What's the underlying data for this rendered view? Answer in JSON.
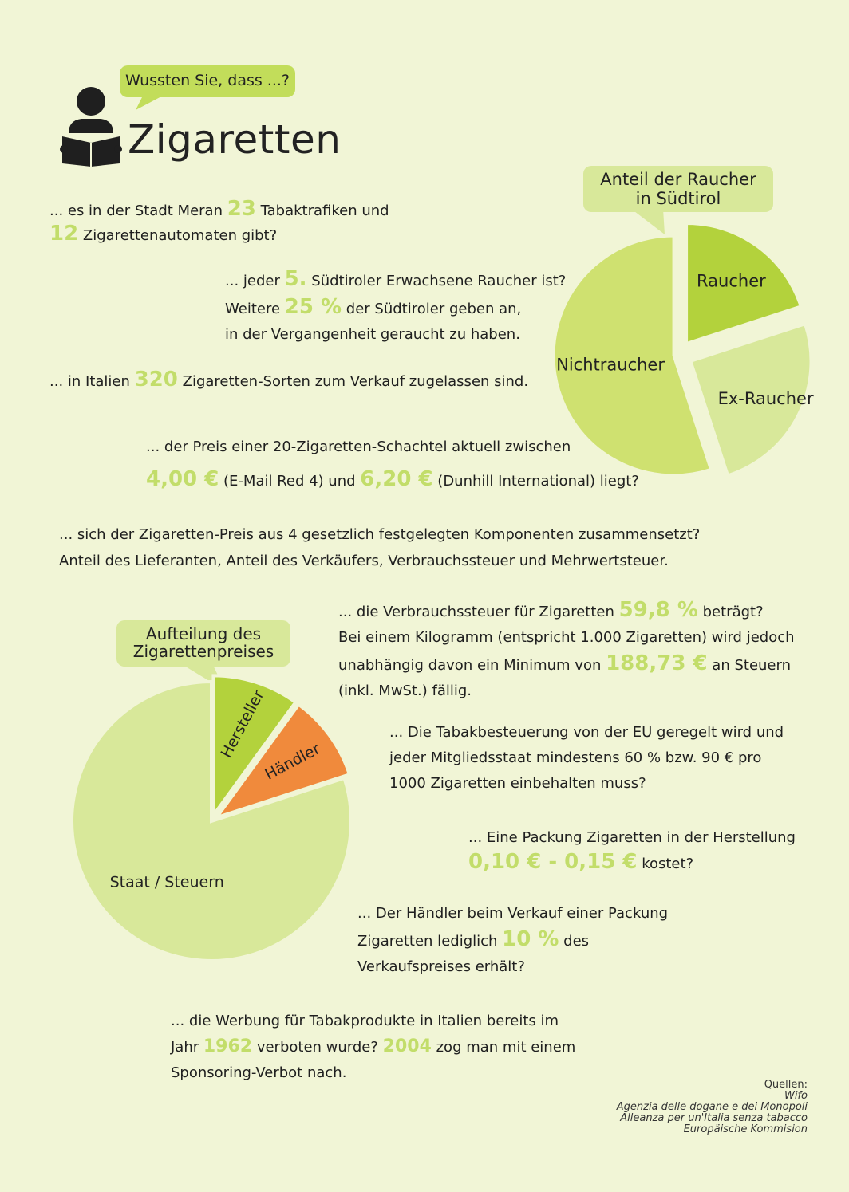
{
  "header": {
    "bubble": "Wussten Sie, dass ...?",
    "title": "Zigaretten",
    "icon": "person-reading-icon"
  },
  "facts": {
    "f1": {
      "a": "... es in der Stadt Meran ",
      "n1": "23",
      "b": " Tabaktrafiken und",
      "n2": "12",
      "c": " Zigarettenautomaten gibt?"
    },
    "f2": {
      "a": "... jeder ",
      "n1": "5.",
      "b": " Südtiroler Erwachsene Raucher ist?",
      "c": "Weitere ",
      "n2": "25 %",
      "d": " der Südtiroler geben an,",
      "e": "in der Vergangenheit geraucht zu haben."
    },
    "f3": {
      "a": "... in Italien ",
      "n1": "320",
      "b": " Zigaretten-Sorten zum Verkauf zugelassen sind."
    },
    "f4": {
      "a": "... der Preis einer 20-Zigaretten-Schachtel aktuell zwischen",
      "n1": "4,00 €",
      "b": " (E-Mail Red 4) und ",
      "n2": "6,20 €",
      "c": " (Dunhill International) liegt?"
    },
    "f5": {
      "a": "... sich der Zigaretten-Preis aus 4 gesetzlich festgelegten Komponenten zusammensetzt?",
      "b": "Anteil des Lieferanten, Anteil des Verkäufers, Verbrauchssteuer und Mehrwertsteuer."
    },
    "f6": {
      "a": "... die Verbrauchssteuer für Zigaretten ",
      "n1": "59,8 %",
      "b": " beträgt?",
      "c": "Bei einem Kilogramm (entspricht 1.000 Zigaretten) wird jedoch",
      "d": "unabhängig davon ein Minimum von ",
      "n2": "188,73 €",
      "e": " an Steuern",
      "f": "(inkl. MwSt.) fällig."
    },
    "f7": {
      "a": "... Die Tabakbesteuerung von der EU geregelt wird und",
      "b": "jeder Mitgliedsstaat mindestens 60 % bzw. 90 € pro",
      "c": "1000 Zigaretten einbehalten muss?"
    },
    "f8": {
      "a": "... Eine Packung Zigaretten in der Herstellung",
      "n1": "0,10 € - 0,15 €",
      "b": " kostet?"
    },
    "f9": {
      "a": "... Der Händler beim Verkauf einer Packung",
      "b": "Zigaretten lediglich ",
      "n1": "10 %",
      "c": " des",
      "d": "Verkaufspreises erhält?"
    },
    "f10": {
      "a": "... die Werbung für Tabakprodukte in Italien bereits im",
      "b": "Jahr ",
      "n1": "1962",
      "c": " verboten wurde? ",
      "n2": "2004",
      "d": " zog man mit einem",
      "e": "Sponsoring-Verbot nach."
    }
  },
  "chart_data": [
    {
      "type": "pie",
      "title": "Anteil der Raucher in Südtirol",
      "slices": [
        {
          "label": "Raucher",
          "value": 20,
          "color": "#b3d23c"
        },
        {
          "label": "Ex-Raucher",
          "value": 25,
          "color": "#d8e89a"
        },
        {
          "label": "Nichtraucher",
          "value": 55,
          "color": "#cfe170"
        }
      ]
    },
    {
      "type": "pie",
      "title": "Aufteilung des Zigarettenpreises",
      "slices": [
        {
          "label": "Hersteller",
          "value": 10,
          "color": "#b3d23c"
        },
        {
          "label": "Händler",
          "value": 10,
          "color": "#f08a3c"
        },
        {
          "label": "Staat / Steuern",
          "value": 80,
          "color": "#d8e89a"
        }
      ]
    }
  ],
  "chart_text": {
    "c1_title_l1": "Anteil der Raucher",
    "c1_title_l2": "in Südtirol",
    "c2_title_l1": "Aufteilung des",
    "c2_title_l2": "Zigarettenpreises"
  },
  "sources": {
    "label": "Quellen:",
    "items": [
      "Wifo",
      "Agenzia delle dogane e dei Monopoli",
      "Alleanza per un'Italia senza tabacco",
      "Europäische Kommision"
    ]
  }
}
